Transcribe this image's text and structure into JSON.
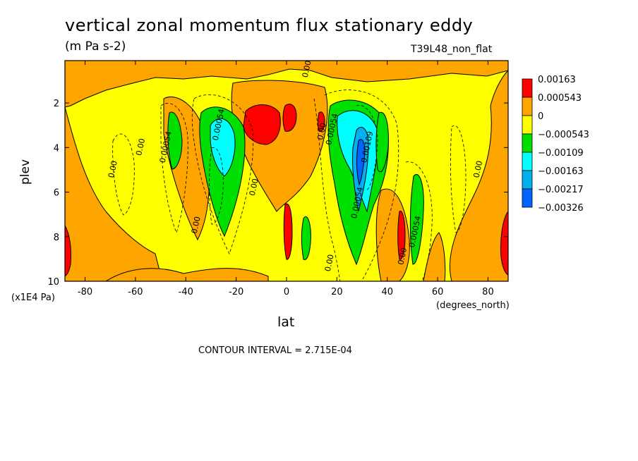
{
  "chart_data": {
    "type": "heatmap",
    "title": "vertical zonal momentum flux stationary eddy",
    "units": "(m Pa s-2)",
    "run_label": "T39L48_non_flat",
    "xlabel": "lat",
    "xunit": "(degrees_north)",
    "ylabel": "plev",
    "yunit": "(x1E4 Pa)",
    "xlim": [
      -88,
      88
    ],
    "ylim": [
      0.1,
      10
    ],
    "y_inverted": true,
    "x_ticks": [
      -80,
      -60,
      -40,
      -20,
      0,
      20,
      40,
      60,
      80
    ],
    "y_ticks": [
      2,
      4,
      6,
      8,
      10
    ],
    "contour_interval_text": "CONTOUR INTERVAL = 2.715E-04",
    "legend": {
      "placement": "right",
      "labels": [
        "0.00163",
        "0.000543",
        "0",
        "−0.000543",
        "−0.00109",
        "−0.00163",
        "−0.00217",
        "−0.00326"
      ],
      "colors": [
        "#ff0000",
        "#ffa500",
        "#ffff00",
        "#00e000",
        "#00ffff",
        "#00b0f0",
        "#0064ff"
      ]
    },
    "contour_labels": [
      {
        "text": "0.00",
        "lat": 9,
        "plev": 0.5
      },
      {
        "text": "0.00",
        "lat": -68,
        "plev": 5
      },
      {
        "text": "0.00",
        "lat": -57,
        "plev": 4
      },
      {
        "text": "0.00054",
        "lat": -47,
        "plev": 4
      },
      {
        "text": "0.00054",
        "lat": -26,
        "plev": 3
      },
      {
        "text": "0.00",
        "lat": -12,
        "plev": 5.8
      },
      {
        "text": "0.00",
        "lat": -35,
        "plev": 7.5
      },
      {
        "text": "0.00",
        "lat": 15,
        "plev": 3.3
      },
      {
        "text": "0.00054",
        "lat": 19,
        "plev": 3.2
      },
      {
        "text": "0.00109",
        "lat": 33,
        "plev": 4
      },
      {
        "text": "0.00054",
        "lat": 29,
        "plev": 6.5
      },
      {
        "text": "0.00",
        "lat": 18,
        "plev": 9.2
      },
      {
        "text": "0.00",
        "lat": 47,
        "plev": 8.9
      },
      {
        "text": "0.00054",
        "lat": 52,
        "plev": 7.8
      },
      {
        "text": "0.00",
        "lat": 77,
        "plev": 5
      }
    ]
  }
}
